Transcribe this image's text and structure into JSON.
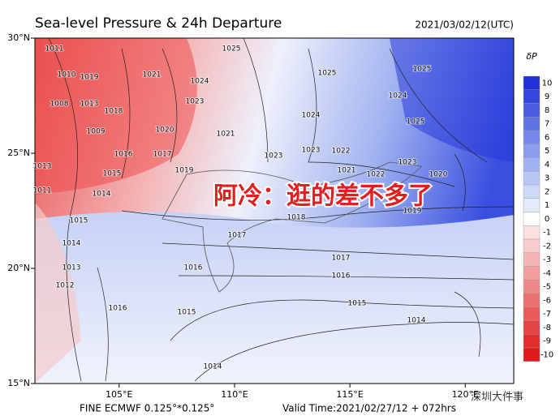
{
  "header": {
    "title": "Sea-level Pressure & 24h Departure",
    "date": "2021/03/02/12(UTC)"
  },
  "map": {
    "lonlim": [
      101.35,
      122.1
    ],
    "latlim": [
      15,
      30
    ],
    "lon_ticks": [
      {
        "value": 105,
        "label": "105°E"
      },
      {
        "value": 110,
        "label": "110°E"
      },
      {
        "value": 115,
        "label": "115°E"
      },
      {
        "value": 120,
        "label": "120°E"
      }
    ],
    "lat_ticks": [
      {
        "value": 30,
        "label": "30°N"
      },
      {
        "value": 25,
        "label": "25°N"
      },
      {
        "value": 20,
        "label": "20°N"
      },
      {
        "value": 15,
        "label": "15°N"
      }
    ],
    "contour_labels": [
      "1011",
      "1010",
      "1019",
      "1021",
      "1025",
      "1024",
      "1023",
      "1008",
      "1013",
      "1018",
      "1009",
      "1020",
      "1017",
      "1016",
      "1015",
      "1014",
      "1019",
      "1021",
      "1023",
      "1024",
      "1025",
      "1023",
      "1022",
      "1021",
      "1025",
      "1024",
      "1025",
      "1023",
      "1020",
      "1022",
      "1019",
      "1018",
      "1017",
      "1016",
      "1017",
      "1016",
      "1015",
      "1015",
      "1014",
      "1014",
      "1015",
      "1014",
      "1012",
      "1013",
      "1016",
      "1011",
      "1013"
    ]
  },
  "colorbar": {
    "label": "δP",
    "ticks": [
      10,
      9,
      8,
      7,
      6,
      5,
      4,
      3,
      2,
      1,
      0,
      -1,
      -2,
      -3,
      -4,
      -5,
      -6,
      -7,
      -8,
      -9,
      -10
    ],
    "colors": [
      "#2233d8",
      "#3347dd",
      "#4a5de2",
      "#6073e6",
      "#7689ea",
      "#8c9eee",
      "#a2b3f2",
      "#b8c7f5",
      "#ced9f8",
      "#e4ebfb",
      "#ffffff",
      "#fbe2e2",
      "#f8cccc",
      "#f5b5b5",
      "#f29e9e",
      "#ef8888",
      "#ec7171",
      "#e95a5a",
      "#e64444",
      "#e32d2d",
      "#e01a1a"
    ]
  },
  "overlay": {
    "text": "阿冷：逛的差不多了"
  },
  "footer": {
    "model": "FINE ECMWF 0.125°*0.125°",
    "valid": "Valid Time:2021/02/27/12 + 072hrs",
    "watermark": "深圳大件事"
  }
}
